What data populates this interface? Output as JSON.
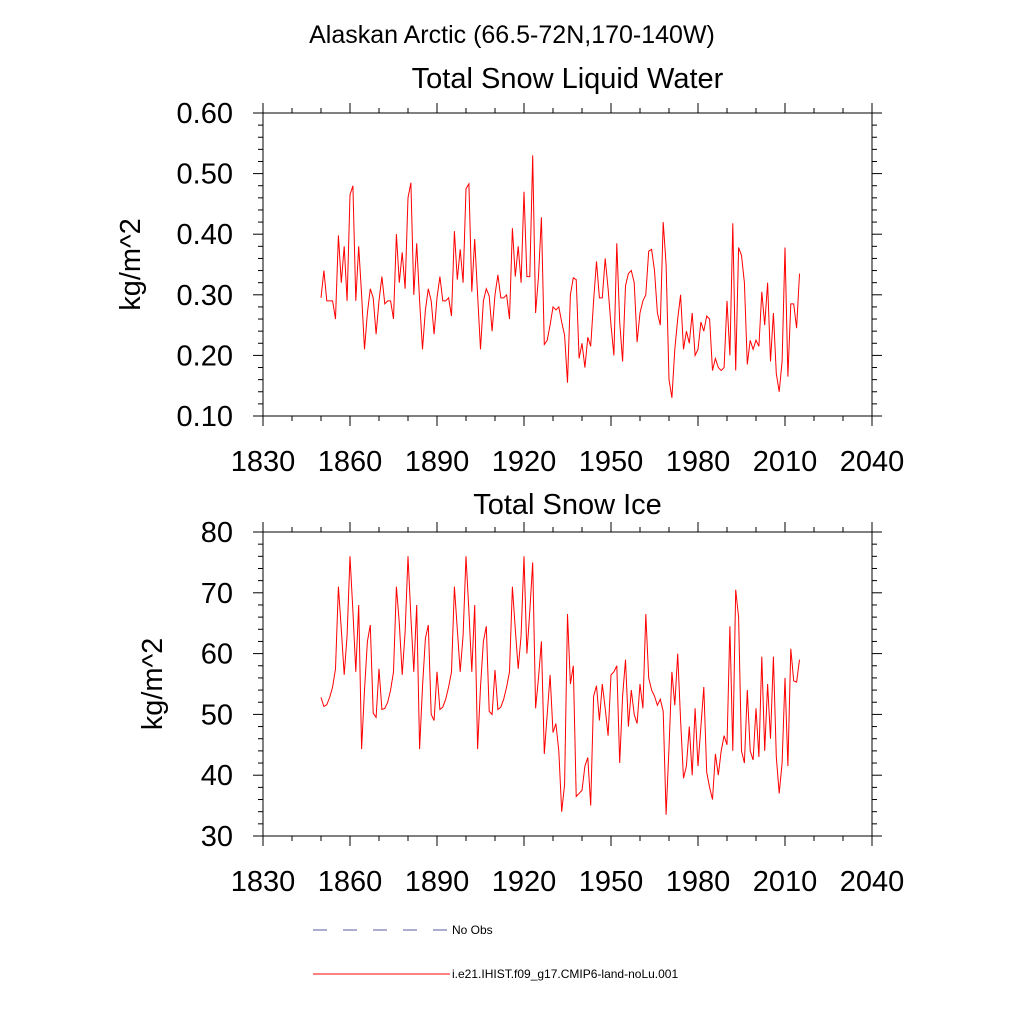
{
  "page_title": "Alaskan Arctic (66.5-72N,170-140W)",
  "colors": {
    "series": "#ff0000",
    "obs": "#5a5aa0",
    "axis": "#000000"
  },
  "legend": {
    "obs_label": "No Obs",
    "model_label": "i.e21.IHIST.f09_g17.CMIP6-land-noLu.001"
  },
  "chart_data": [
    {
      "type": "line",
      "title": "Total Snow Liquid Water",
      "xlabel": "",
      "ylabel": "kg/m^2",
      "xlim": [
        1830,
        2040
      ],
      "ylim": [
        0.1,
        0.6
      ],
      "xticks": [
        "1830",
        "1860",
        "1890",
        "1920",
        "1950",
        "1980",
        "2010",
        "2040"
      ],
      "yticks": [
        "0.10",
        "0.20",
        "0.30",
        "0.40",
        "0.50",
        "0.60"
      ],
      "series": [
        {
          "name": "i.e21.IHIST.f09_g17.CMIP6-land-noLu.001",
          "x_start": 1850,
          "values": [
            0.295,
            0.34,
            0.29,
            0.29,
            0.29,
            0.26,
            0.398,
            0.32,
            0.38,
            0.29,
            0.465,
            0.48,
            0.29,
            0.38,
            0.3,
            0.21,
            0.27,
            0.31,
            0.295,
            0.235,
            0.29,
            0.33,
            0.285,
            0.29,
            0.29,
            0.26,
            0.4,
            0.32,
            0.37,
            0.31,
            0.46,
            0.485,
            0.3,
            0.385,
            0.29,
            0.21,
            0.275,
            0.31,
            0.29,
            0.235,
            0.295,
            0.33,
            0.29,
            0.29,
            0.295,
            0.265,
            0.405,
            0.325,
            0.375,
            0.32,
            0.475,
            0.483,
            0.305,
            0.392,
            0.3,
            0.21,
            0.29,
            0.31,
            0.298,
            0.24,
            0.3,
            0.333,
            0.295,
            0.295,
            0.3,
            0.26,
            0.41,
            0.33,
            0.38,
            0.32,
            0.47,
            0.33,
            0.33,
            0.53,
            0.27,
            0.33,
            0.428,
            0.218,
            0.225,
            0.25,
            0.28,
            0.275,
            0.28,
            0.255,
            0.233,
            0.155,
            0.3,
            0.328,
            0.325,
            0.195,
            0.22,
            0.18,
            0.23,
            0.215,
            0.29,
            0.355,
            0.295,
            0.295,
            0.36,
            0.31,
            0.25,
            0.2,
            0.385,
            0.255,
            0.19,
            0.315,
            0.335,
            0.34,
            0.32,
            0.222,
            0.27,
            0.29,
            0.3,
            0.372,
            0.375,
            0.34,
            0.27,
            0.25,
            0.42,
            0.35,
            0.16,
            0.13,
            0.21,
            0.26,
            0.3,
            0.21,
            0.24,
            0.22,
            0.27,
            0.2,
            0.21,
            0.255,
            0.24,
            0.265,
            0.26,
            0.175,
            0.195,
            0.18,
            0.175,
            0.18,
            0.29,
            0.2,
            0.418,
            0.175,
            0.378,
            0.365,
            0.32,
            0.185,
            0.225,
            0.21,
            0.225,
            0.215,
            0.305,
            0.25,
            0.32,
            0.19,
            0.27,
            0.17,
            0.14,
            0.19,
            0.378,
            0.165,
            0.285,
            0.285,
            0.245,
            0.335
          ]
        }
      ]
    },
    {
      "type": "line",
      "title": "Total Snow Ice",
      "xlabel": "",
      "ylabel": "kg/m^2",
      "xlim": [
        1830,
        2040
      ],
      "ylim": [
        30,
        80
      ],
      "xticks": [
        "1830",
        "1860",
        "1890",
        "1920",
        "1950",
        "1980",
        "2010",
        "2040"
      ],
      "yticks": [
        "30",
        "40",
        "50",
        "60",
        "70",
        "80"
      ],
      "series": [
        {
          "name": "i.e21.IHIST.f09_g17.CMIP6-land-noLu.001",
          "x_start": 1850,
          "values": [
            52.8,
            51.3,
            51.6,
            52.8,
            54.5,
            57.5,
            71.0,
            64.0,
            56.5,
            63.0,
            76.0,
            67.0,
            57.0,
            68.0,
            44.3,
            54.0,
            62.0,
            64.7,
            50.2,
            49.5,
            57.5,
            50.8,
            51.0,
            52.0,
            54.0,
            57.0,
            71.0,
            65.0,
            56.5,
            63.5,
            76.0,
            66.0,
            57.0,
            68.0,
            44.3,
            54.5,
            62.5,
            64.7,
            50.0,
            49.0,
            57.0,
            50.8,
            51.2,
            52.5,
            54.5,
            57.0,
            71.0,
            64.0,
            57.0,
            63.0,
            76.0,
            67.0,
            57.0,
            68.0,
            44.3,
            54.5,
            62.0,
            64.5,
            50.5,
            50.0,
            57.3,
            50.8,
            51.2,
            52.5,
            54.5,
            57.0,
            71.0,
            64.0,
            57.5,
            63.0,
            76.0,
            60.0,
            67.0,
            75.0,
            51.0,
            56.0,
            62.0,
            43.5,
            50.0,
            56.5,
            47.0,
            48.5,
            44.0,
            34.0,
            38.5,
            66.5,
            55.0,
            58.0,
            36.5,
            37.0,
            37.5,
            41.5,
            42.9,
            35.0,
            53.0,
            54.7,
            49.0,
            55.0,
            51.0,
            46.5,
            56.5,
            57.0,
            58.0,
            42.0,
            53.0,
            59.0,
            48.0,
            54.0,
            50.0,
            48.5,
            55.0,
            51.0,
            66.5,
            56.0,
            54.0,
            53.0,
            51.5,
            52.5,
            50.5,
            33.5,
            44.5,
            57.0,
            51.5,
            60.0,
            49.0,
            39.5,
            41.5,
            48.0,
            40.0,
            51.0,
            41.5,
            48.0,
            54.5,
            40.5,
            38.0,
            36.0,
            43.5,
            40.0,
            44.0,
            46.5,
            45.0,
            64.5,
            44.0,
            70.5,
            66.0,
            44.0,
            42.0,
            54.0,
            44.0,
            42.5,
            51.0,
            43.0,
            59.5,
            44.0,
            55.0,
            46.0,
            59.5,
            43.0,
            37.0,
            42.0,
            56.0,
            41.5,
            60.8,
            55.5,
            55.3,
            59.0
          ]
        }
      ]
    }
  ]
}
